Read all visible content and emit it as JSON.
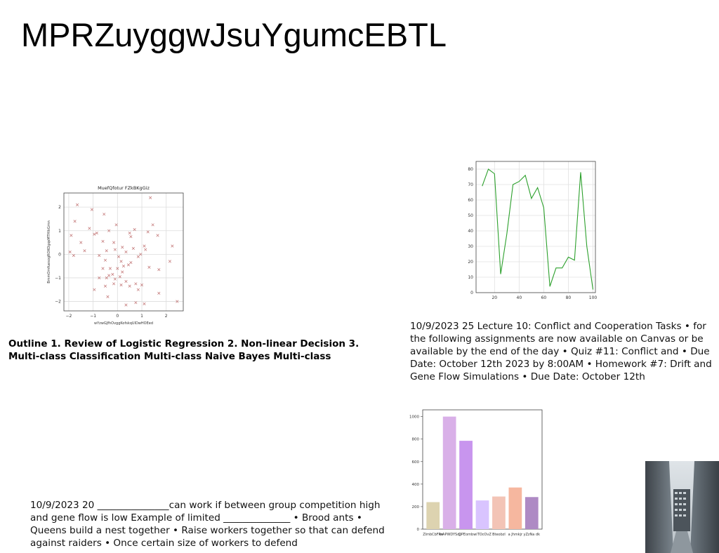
{
  "slide": {
    "title": "MPRZuyggwJsuYgumcEBTL",
    "outline_text": "Outline 1. Review of Logistic Regression 2. Non-linear Decision 3. Multi-class Classification Multi-class Naive Bayes Multi-class",
    "paragraph_right": "10/9/2023 25 Lecture 10: Conflict and Cooperation Tasks • for the following assignments are now available on Canvas or be available by the end of the day • Quiz #11: Conflict and • Due Date: October 12th 2023 by 8:00AM • Homework #7: Drift and Gene Flow Simulations • Due Date: October 12th",
    "paragraph_bottom": "10/9/2023 20 _______________can work if between group competition high and gene flow is low Example of limited ______________ • Brood ants • Queens build a nest together • Raise workers together so that can defend against raiders • Once certain size of workers to defend"
  },
  "chart_data": [
    {
      "type": "scatter",
      "title": "MuefQfotur FZkBKgGiz",
      "xlabel": "wYzwGJfhOvggKofskqUlDwHOEed",
      "ylabel": "BmmOmfuesogROKOgqsMTHIkGmn",
      "xlim": [
        -2.2,
        2.7
      ],
      "ylim": [
        -2.4,
        2.6
      ],
      "xticks": [
        -2,
        -1,
        0,
        1,
        2
      ],
      "yticks": [
        -2,
        -1,
        0,
        1,
        2
      ],
      "grid": true,
      "marker": "x",
      "color": "#c07070",
      "points": [
        [
          -1.65,
          2.1
        ],
        [
          -1.05,
          1.9
        ],
        [
          -0.55,
          1.7
        ],
        [
          1.35,
          2.4
        ],
        [
          -1.75,
          1.4
        ],
        [
          -1.15,
          1.1
        ],
        [
          -0.85,
          0.9
        ],
        [
          -0.35,
          1.0
        ],
        [
          -0.05,
          1.25
        ],
        [
          0.5,
          0.9
        ],
        [
          0.7,
          1.05
        ],
        [
          1.25,
          0.95
        ],
        [
          1.45,
          1.25
        ],
        [
          -1.9,
          0.8
        ],
        [
          -1.5,
          0.5
        ],
        [
          -0.95,
          0.85
        ],
        [
          -0.6,
          0.55
        ],
        [
          -0.15,
          0.5
        ],
        [
          0.2,
          0.3
        ],
        [
          0.55,
          0.75
        ],
        [
          1.1,
          0.35
        ],
        [
          1.65,
          0.8
        ],
        [
          2.25,
          0.35
        ],
        [
          -1.95,
          0.1
        ],
        [
          -1.35,
          0.15
        ],
        [
          -0.75,
          -0.05
        ],
        [
          -0.45,
          0.15
        ],
        [
          -0.1,
          0.2
        ],
        [
          0.05,
          -0.1
        ],
        [
          0.35,
          0.1
        ],
        [
          0.65,
          0.25
        ],
        [
          0.95,
          0.0
        ],
        [
          1.15,
          0.2
        ],
        [
          -1.8,
          -0.05
        ],
        [
          -0.5,
          -0.25
        ],
        [
          0.15,
          -0.3
        ],
        [
          0.55,
          -0.35
        ],
        [
          0.85,
          -0.1
        ],
        [
          -0.6,
          -0.6
        ],
        [
          -0.3,
          -0.6
        ],
        [
          0.0,
          -0.6
        ],
        [
          0.25,
          -0.5
        ],
        [
          0.45,
          -0.45
        ],
        [
          1.3,
          -0.55
        ],
        [
          1.7,
          -0.65
        ],
        [
          2.15,
          -0.3
        ],
        [
          -0.75,
          -1.0
        ],
        [
          -0.45,
          -1.0
        ],
        [
          -0.2,
          -0.85
        ],
        [
          0.1,
          -0.95
        ],
        [
          0.35,
          -1.15
        ],
        [
          0.75,
          -1.25
        ],
        [
          1.0,
          -1.3
        ],
        [
          -0.95,
          -1.5
        ],
        [
          -0.5,
          -1.35
        ],
        [
          -0.15,
          -1.25
        ],
        [
          0.15,
          -1.3
        ],
        [
          0.5,
          -1.35
        ],
        [
          0.85,
          -1.5
        ],
        [
          1.7,
          -1.65
        ],
        [
          -0.4,
          -1.8
        ],
        [
          0.35,
          -2.15
        ],
        [
          0.75,
          -2.05
        ],
        [
          1.1,
          -2.1
        ],
        [
          2.45,
          -2.0
        ],
        [
          -0.35,
          -0.9
        ],
        [
          -0.1,
          -1.05
        ],
        [
          0.2,
          -0.75
        ]
      ]
    },
    {
      "type": "line",
      "title": "",
      "xlim": [
        5,
        102
      ],
      "ylim": [
        0,
        85
      ],
      "xticks": [
        20,
        40,
        60,
        80,
        100
      ],
      "yticks": [
        0,
        10,
        20,
        30,
        40,
        50,
        60,
        70,
        80
      ],
      "grid": true,
      "color": "#2ca02c",
      "series": [
        {
          "x": [
            10,
            15,
            20,
            25,
            30,
            35,
            40,
            45,
            50,
            55,
            60,
            65,
            70,
            75,
            80,
            85,
            90,
            95,
            100
          ],
          "values": [
            69,
            80,
            77,
            12,
            38,
            70,
            72,
            76,
            61,
            68,
            55,
            4,
            16,
            16,
            23,
            21,
            78,
            30,
            2
          ]
        }
      ]
    },
    {
      "type": "bar",
      "categories": [
        "ZlmbCbFRx",
        "IwAPWDYSdj",
        "QPEomb",
        "wiTOcOvZ",
        "Bteobzl",
        "a Jhmkjr",
        "yZzNa dk"
      ],
      "values": [
        240,
        1000,
        785,
        255,
        290,
        370,
        285
      ],
      "colors": [
        "#ddd3b0",
        "#d9b0e8",
        "#c895ee",
        "#d9c4ff",
        "#f3c4b6",
        "#f6b79f",
        "#ae8ac4"
      ],
      "ylim": [
        0,
        1060
      ],
      "yticks": [
        0,
        200,
        400,
        600,
        800,
        1000
      ],
      "grid": false
    }
  ]
}
